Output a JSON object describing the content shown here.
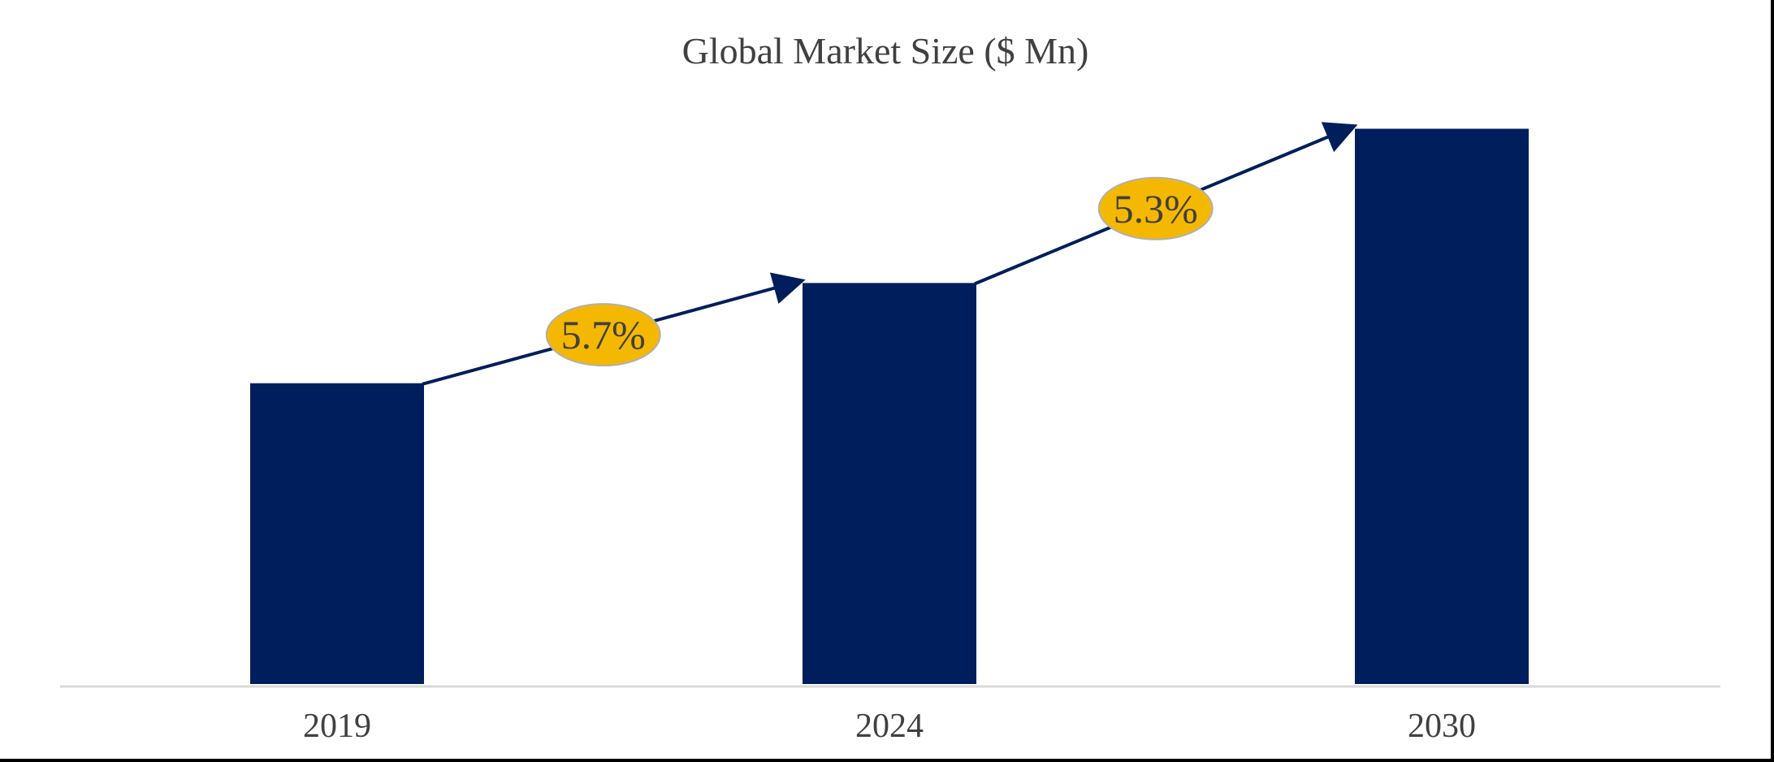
{
  "chart_data": {
    "type": "bar",
    "title": "Global Market Size ($ Mn)",
    "categories": [
      "2019",
      "2024",
      "2030"
    ],
    "values": [
      39,
      52,
      72
    ],
    "ylim": [
      0,
      75
    ],
    "xlabel": "",
    "ylabel": "",
    "y_axis_visible": false,
    "grid": false,
    "legend": "none",
    "growth_annotations": [
      {
        "from": "2019",
        "to": "2024",
        "label": "5.7%"
      },
      {
        "from": "2024",
        "to": "2030",
        "label": "5.3%"
      }
    ],
    "colors": {
      "bar": "#001e5b",
      "arrow": "#001e5b",
      "badge_fill": "#f5b800",
      "badge_border": "#b0b0b0",
      "axis": "#d9d9d9",
      "text": "#404040"
    }
  }
}
